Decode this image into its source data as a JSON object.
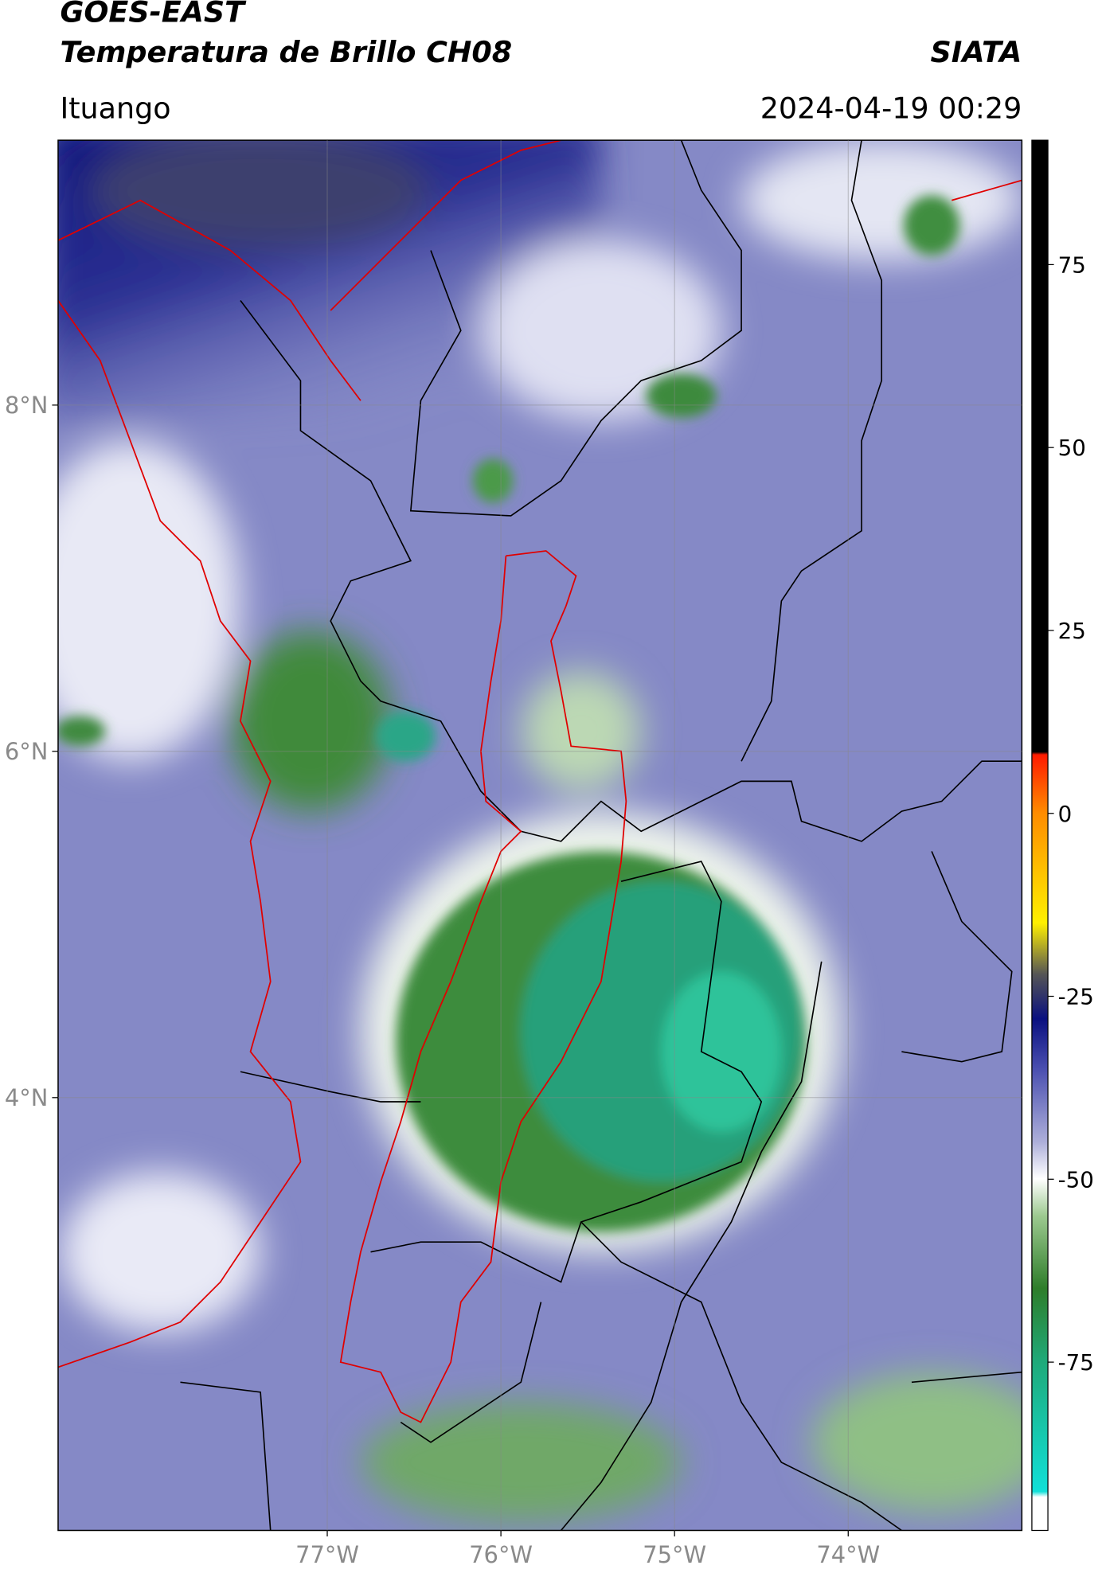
{
  "header": {
    "satellite": "GOES-EAST",
    "product": "Temperatura de Brillo CH08",
    "agency": "SIATA",
    "region": "Ituango",
    "datetime": "2024-04-19 00:29"
  },
  "map": {
    "xlim": [
      -78.55,
      -73.0
    ],
    "ylim": [
      1.5,
      9.53
    ],
    "xticks": [
      {
        "value": -77,
        "label": "77°W"
      },
      {
        "value": -76,
        "label": "76°W"
      },
      {
        "value": -75,
        "label": "75°W"
      },
      {
        "value": -74,
        "label": "74°W"
      }
    ],
    "yticks": [
      {
        "value": 8,
        "label": "8°N"
      },
      {
        "value": 6,
        "label": "6°N"
      },
      {
        "value": 4,
        "label": "4°N"
      }
    ],
    "grid": true
  },
  "colorbar": {
    "lim": [
      -98,
      92
    ],
    "ticks": [
      75,
      50,
      25,
      0,
      -25,
      -50,
      -75
    ]
  }
}
